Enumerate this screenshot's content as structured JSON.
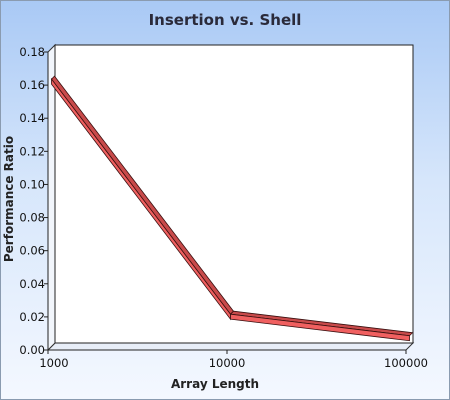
{
  "chart_data": {
    "type": "line",
    "title": "Insertion vs. Shell",
    "xlabel": "Array Length",
    "ylabel": "Performance Ratio",
    "categories": [
      "1000",
      "10000",
      "100000"
    ],
    "x_scale": "log",
    "series": [
      {
        "values": [
          0.16,
          0.018,
          0.005
        ]
      }
    ],
    "ylim": [
      0,
      0.18
    ],
    "yticks": [
      "0.00",
      "0.02",
      "0.04",
      "0.06",
      "0.08",
      "0.10",
      "0.12",
      "0.14",
      "0.16",
      "0.18"
    ],
    "grid": false,
    "legend": "none",
    "line_color": "#f06060",
    "line_edge_color": "#3a1010"
  }
}
